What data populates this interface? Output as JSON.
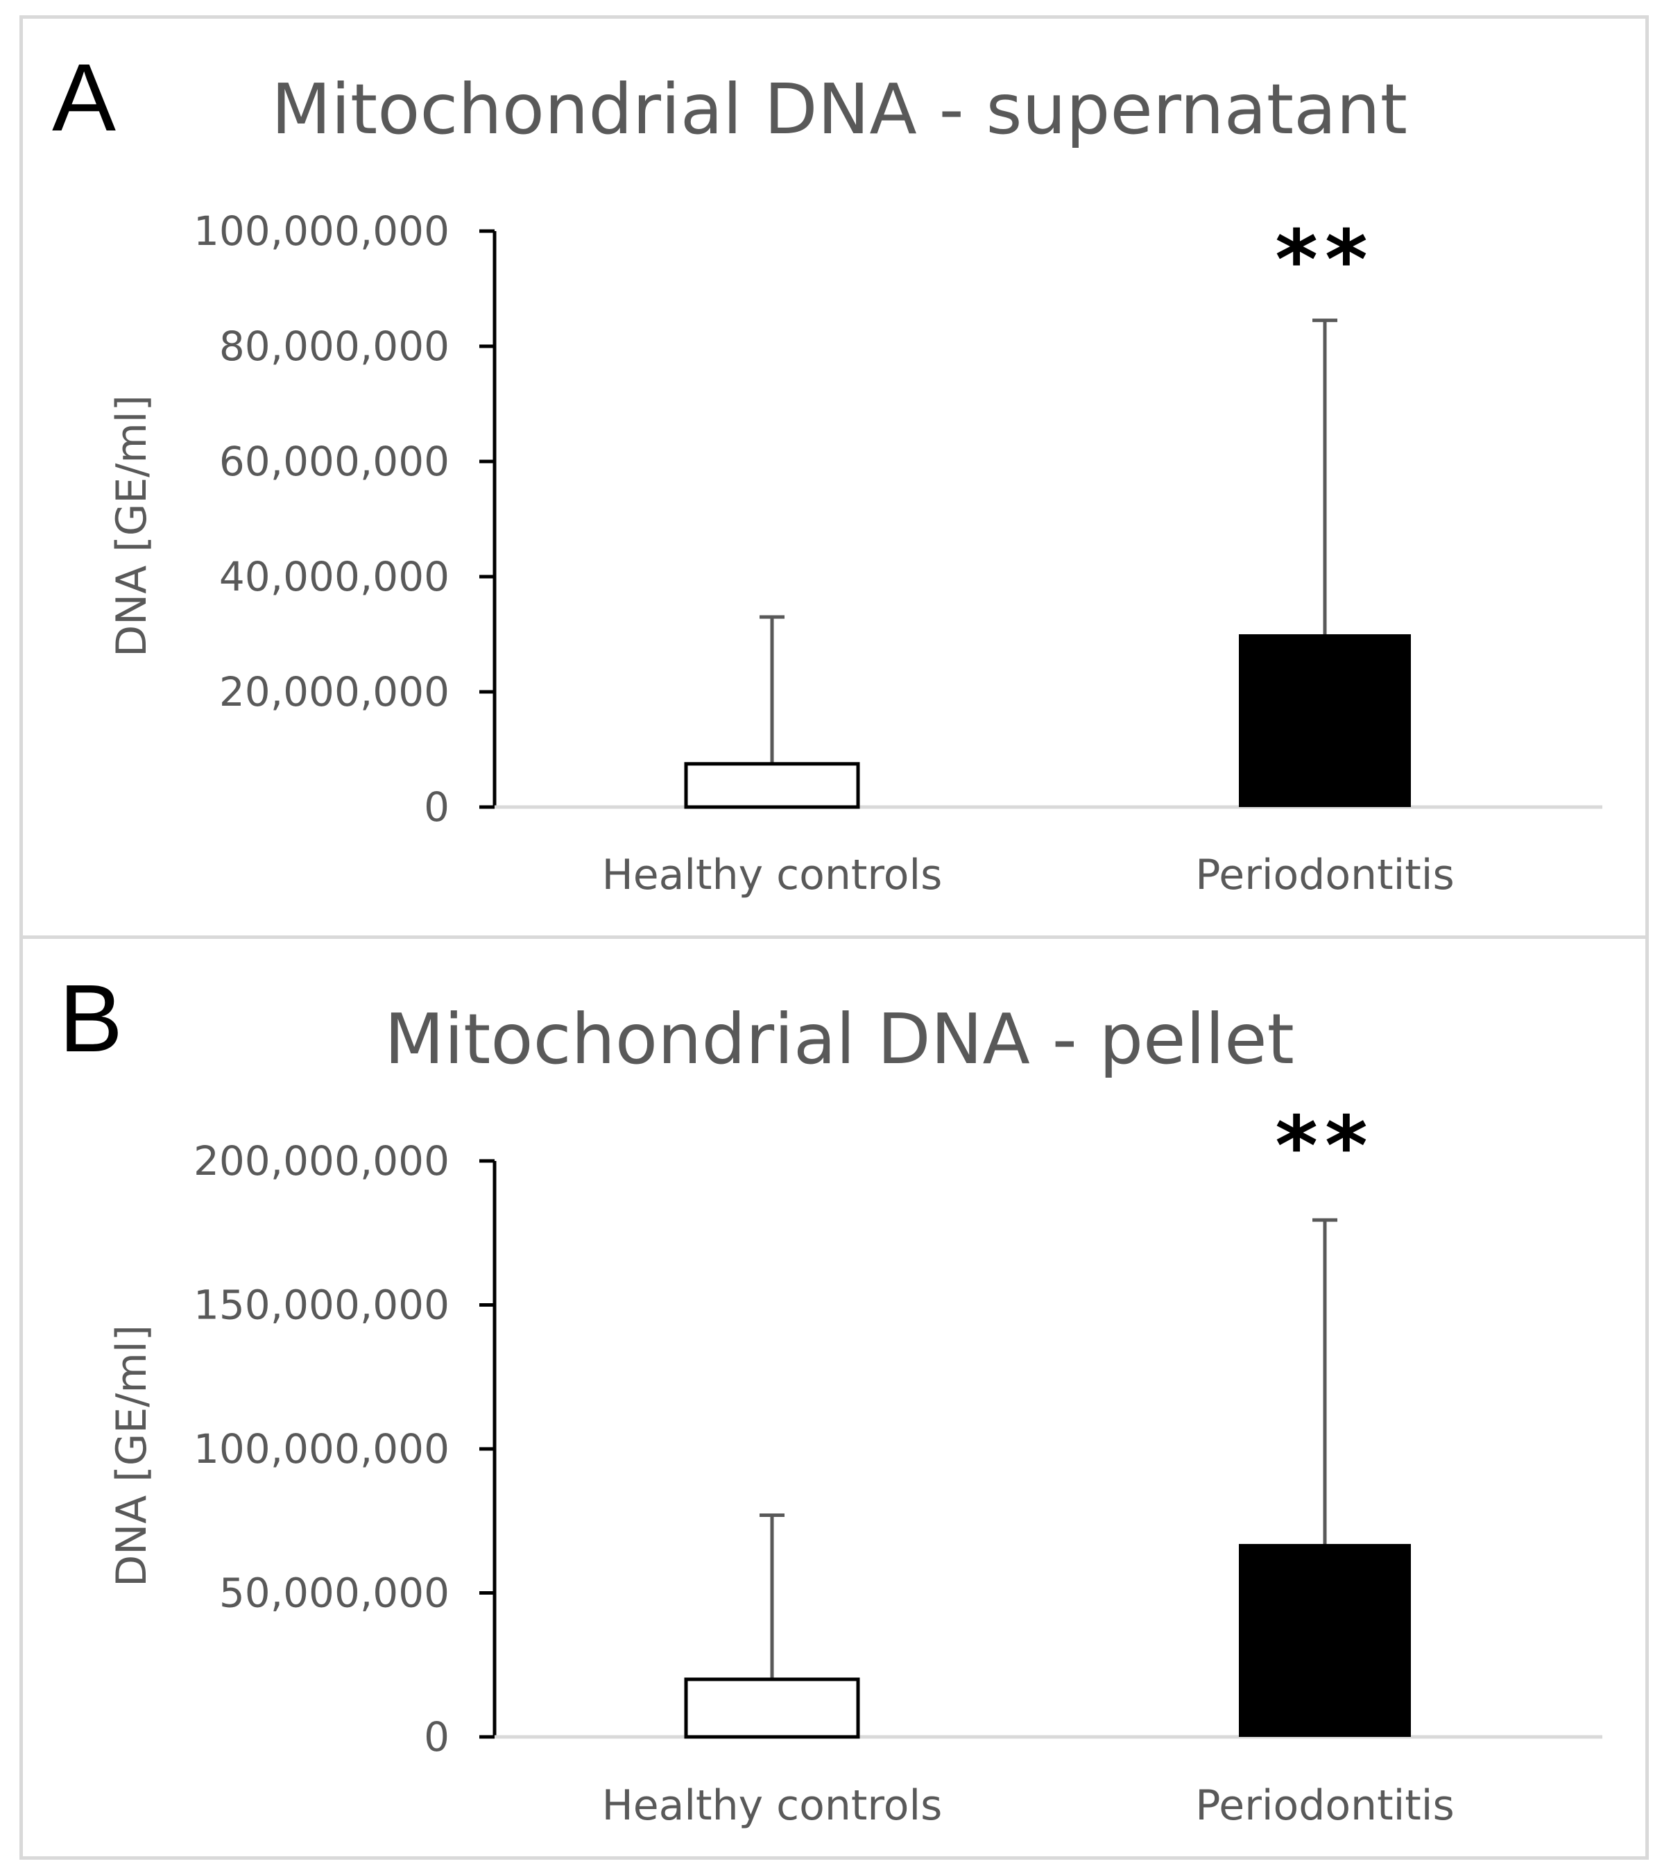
{
  "chart_data": [
    {
      "type": "bar",
      "panel_label": "A",
      "title": "Mitochondrial DNA - supernatant",
      "xlabel": "",
      "ylabel": "DNA [GE/ml]",
      "ylim": [
        0,
        100000000
      ],
      "yticks": [
        0,
        20000000,
        40000000,
        60000000,
        80000000,
        100000000
      ],
      "ytick_labels": [
        "0",
        "20,000,000",
        "40,000,000",
        "60,000,000",
        "80,000,000",
        "100,000,000"
      ],
      "categories": [
        "Healthy controls",
        "Periodontitis"
      ],
      "values": [
        7500000,
        30000000
      ],
      "error_upper": [
        33000000,
        84500000
      ],
      "bar_colors": [
        "#ffffff",
        "#000000"
      ],
      "significance": [
        "",
        "**"
      ],
      "grid": false
    },
    {
      "type": "bar",
      "panel_label": "B",
      "title": "Mitochondrial DNA - pellet",
      "xlabel": "",
      "ylabel": "DNA [GE/ml]",
      "ylim": [
        0,
        200000000
      ],
      "yticks": [
        0,
        50000000,
        100000000,
        150000000,
        200000000
      ],
      "ytick_labels": [
        "0",
        "50,000,000",
        "100,000,000",
        "150,000,000",
        "200,000,000"
      ],
      "categories": [
        "Healthy controls",
        "Periodontitis"
      ],
      "values": [
        20000000,
        67000000
      ],
      "error_upper": [
        77000000,
        179500000
      ],
      "bar_colors": [
        "#ffffff",
        "#000000"
      ],
      "significance": [
        "",
        "**"
      ],
      "grid": false
    }
  ]
}
